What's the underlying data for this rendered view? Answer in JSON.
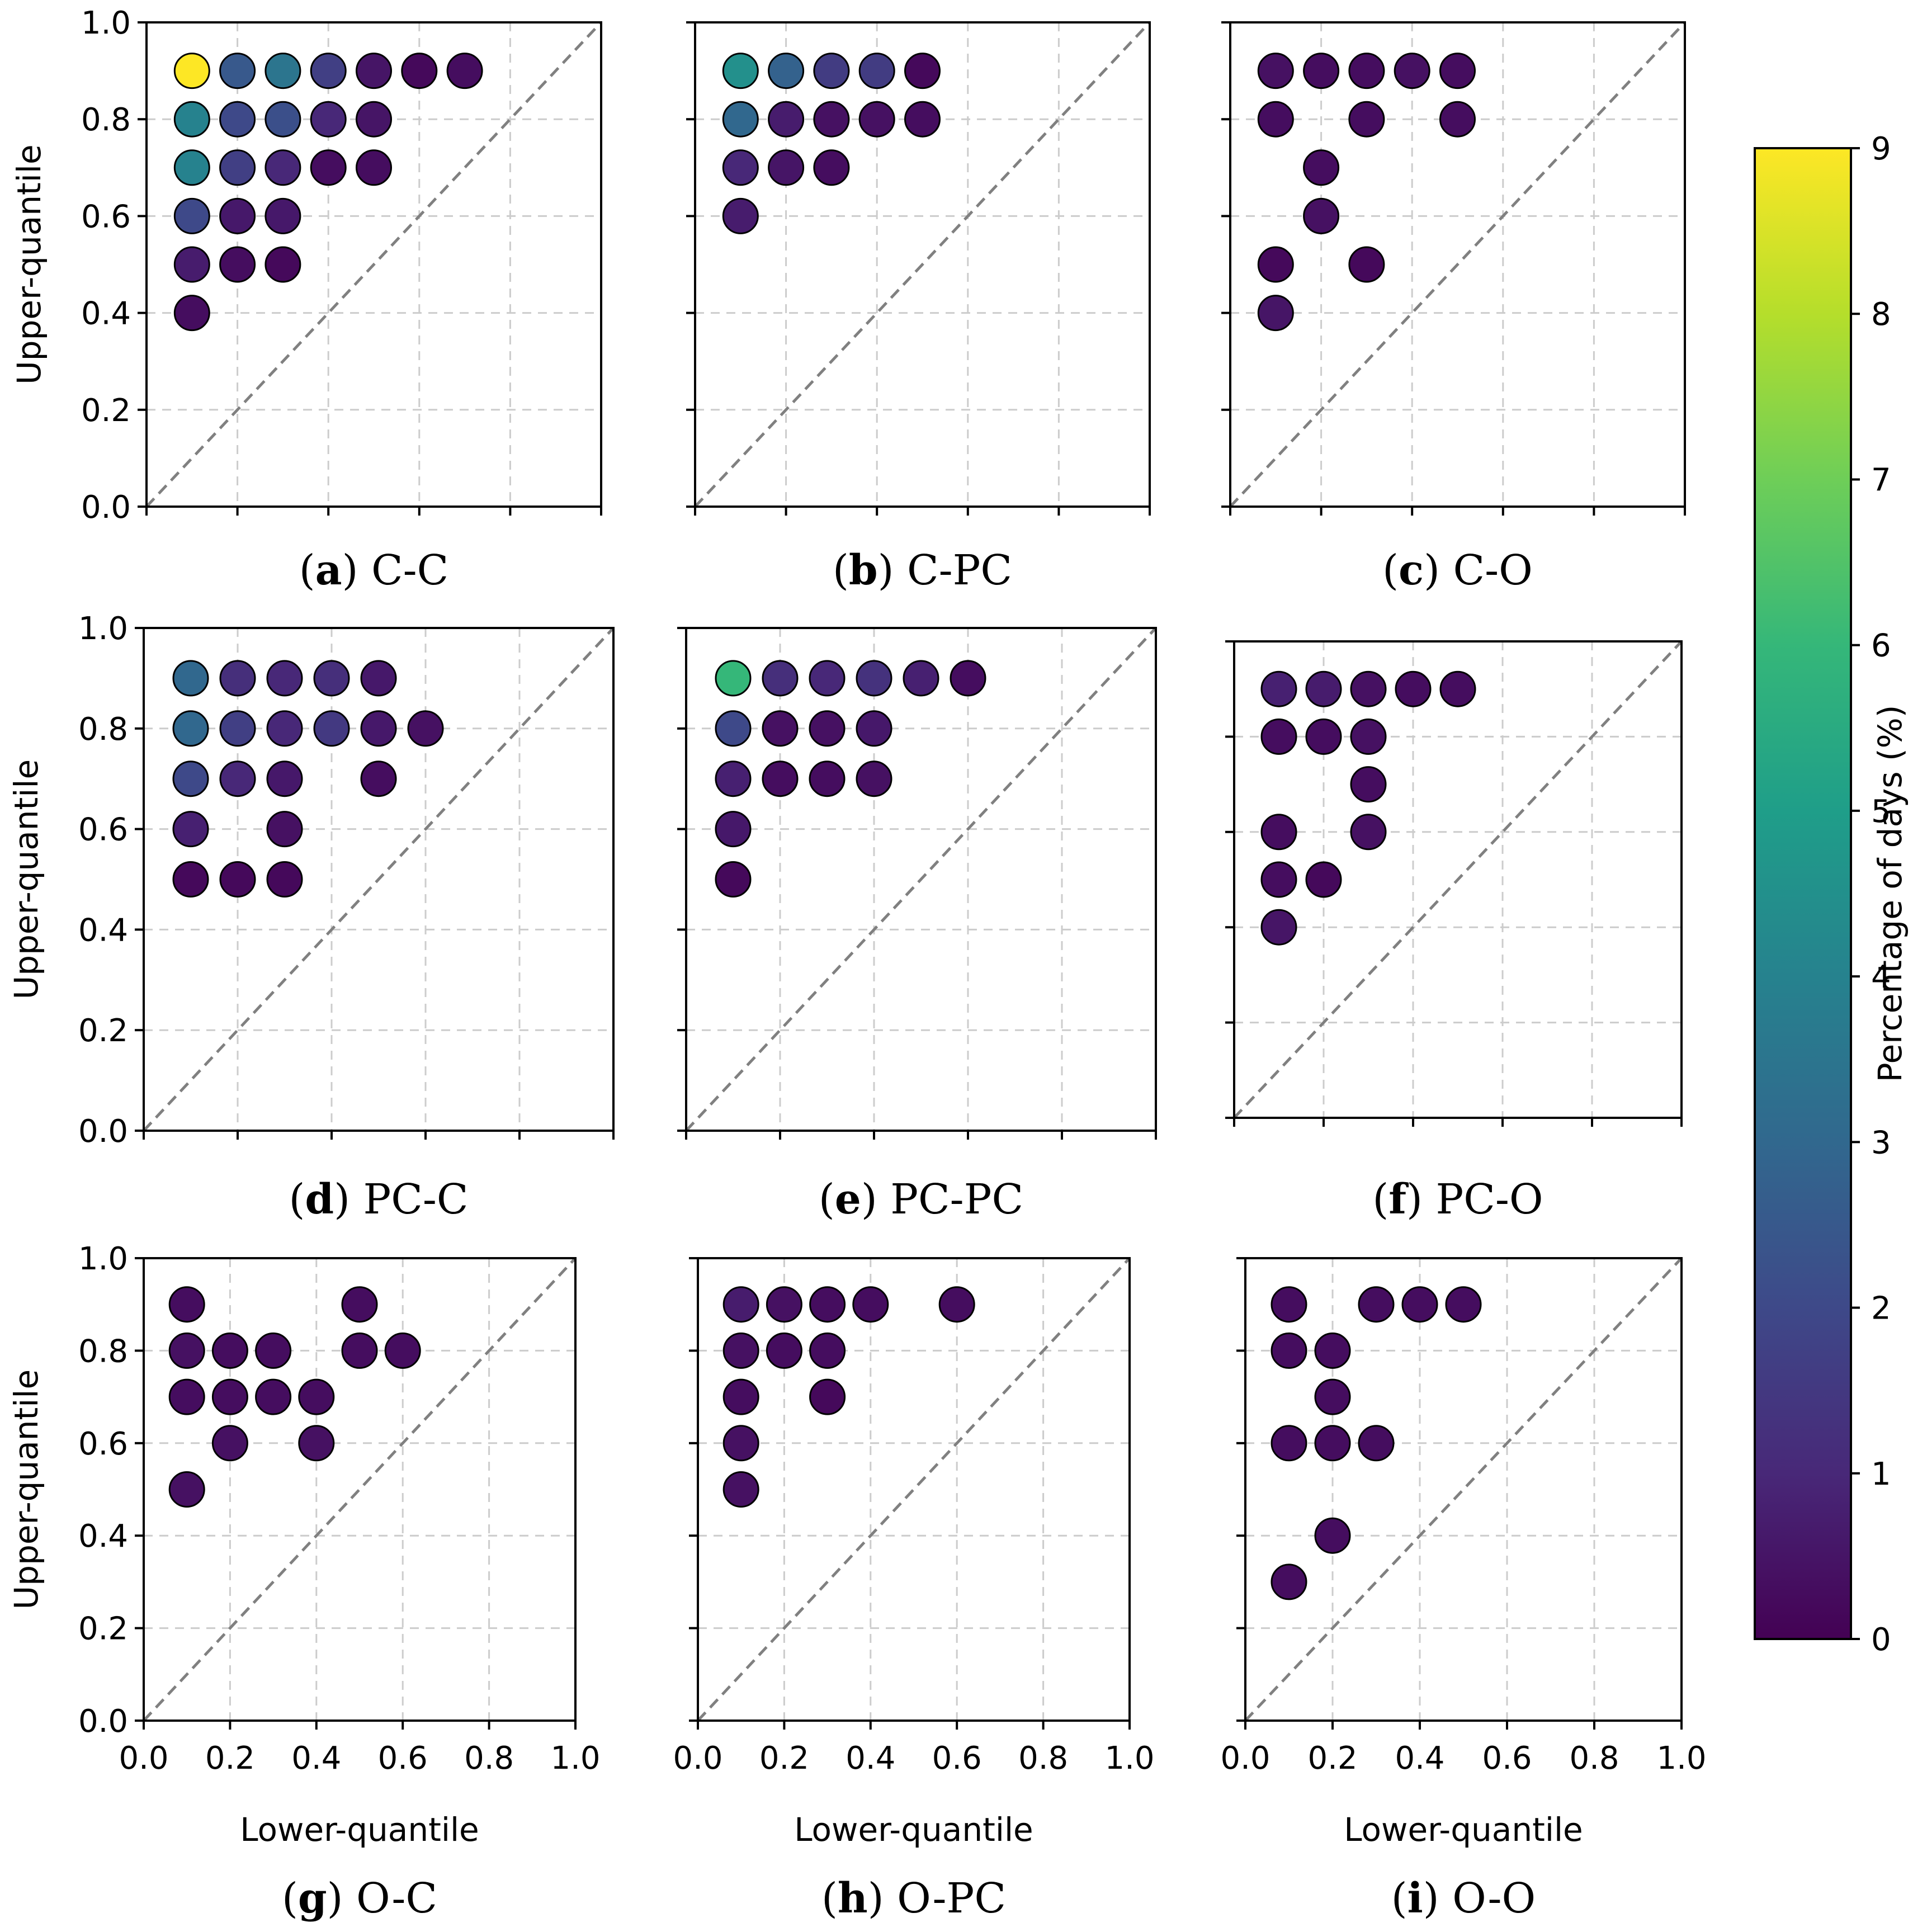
{
  "chart_data": [
    {
      "type": "scatter",
      "panel": "a",
      "title": "C-C",
      "xlabel": "",
      "ylabel": "Upper-quantile",
      "xlim": [
        0,
        1
      ],
      "ylim": [
        0,
        1
      ],
      "points": [
        {
          "x": 0.1,
          "y": 0.9,
          "v": 9.0
        },
        {
          "x": 0.2,
          "y": 0.9,
          "v": 2.5
        },
        {
          "x": 0.3,
          "y": 0.9,
          "v": 3.5
        },
        {
          "x": 0.4,
          "y": 0.9,
          "v": 1.7
        },
        {
          "x": 0.5,
          "y": 0.9,
          "v": 0.5
        },
        {
          "x": 0.6,
          "y": 0.9,
          "v": 0.2
        },
        {
          "x": 0.7,
          "y": 0.9,
          "v": 0.3
        },
        {
          "x": 0.1,
          "y": 0.8,
          "v": 4.0
        },
        {
          "x": 0.2,
          "y": 0.8,
          "v": 2.0
        },
        {
          "x": 0.3,
          "y": 0.8,
          "v": 2.2
        },
        {
          "x": 0.4,
          "y": 0.8,
          "v": 1.0
        },
        {
          "x": 0.5,
          "y": 0.8,
          "v": 0.5
        },
        {
          "x": 0.1,
          "y": 0.7,
          "v": 4.0
        },
        {
          "x": 0.2,
          "y": 0.7,
          "v": 1.7
        },
        {
          "x": 0.3,
          "y": 0.7,
          "v": 1.0
        },
        {
          "x": 0.4,
          "y": 0.7,
          "v": 0.3
        },
        {
          "x": 0.5,
          "y": 0.7,
          "v": 0.3
        },
        {
          "x": 0.1,
          "y": 0.6,
          "v": 2.0
        },
        {
          "x": 0.2,
          "y": 0.6,
          "v": 0.6
        },
        {
          "x": 0.3,
          "y": 0.6,
          "v": 0.6
        },
        {
          "x": 0.1,
          "y": 0.5,
          "v": 0.7
        },
        {
          "x": 0.2,
          "y": 0.5,
          "v": 0.3
        },
        {
          "x": 0.3,
          "y": 0.5,
          "v": 0.2
        },
        {
          "x": 0.1,
          "y": 0.4,
          "v": 0.3
        }
      ]
    },
    {
      "type": "scatter",
      "panel": "b",
      "title": "C-PC",
      "xlabel": "",
      "ylabel": "",
      "xlim": [
        0,
        1
      ],
      "ylim": [
        0,
        1
      ],
      "points": [
        {
          "x": 0.1,
          "y": 0.9,
          "v": 4.5
        },
        {
          "x": 0.2,
          "y": 0.9,
          "v": 2.8
        },
        {
          "x": 0.3,
          "y": 0.9,
          "v": 1.6
        },
        {
          "x": 0.4,
          "y": 0.9,
          "v": 1.6
        },
        {
          "x": 0.5,
          "y": 0.9,
          "v": 0.2
        },
        {
          "x": 0.1,
          "y": 0.8,
          "v": 3.0
        },
        {
          "x": 0.2,
          "y": 0.8,
          "v": 0.7
        },
        {
          "x": 0.3,
          "y": 0.8,
          "v": 0.4
        },
        {
          "x": 0.4,
          "y": 0.8,
          "v": 0.4
        },
        {
          "x": 0.5,
          "y": 0.8,
          "v": 0.3
        },
        {
          "x": 0.1,
          "y": 0.7,
          "v": 1.0
        },
        {
          "x": 0.2,
          "y": 0.7,
          "v": 0.5
        },
        {
          "x": 0.3,
          "y": 0.7,
          "v": 0.3
        },
        {
          "x": 0.1,
          "y": 0.6,
          "v": 0.7
        }
      ]
    },
    {
      "type": "scatter",
      "panel": "c",
      "title": "C-O",
      "xlabel": "",
      "ylabel": "",
      "xlim": [
        0,
        1
      ],
      "ylim": [
        0,
        1
      ],
      "points": [
        {
          "x": 0.1,
          "y": 0.9,
          "v": 0.4
        },
        {
          "x": 0.2,
          "y": 0.9,
          "v": 0.3
        },
        {
          "x": 0.3,
          "y": 0.9,
          "v": 0.3
        },
        {
          "x": 0.4,
          "y": 0.9,
          "v": 0.4
        },
        {
          "x": 0.5,
          "y": 0.9,
          "v": 0.3
        },
        {
          "x": 0.1,
          "y": 0.8,
          "v": 0.3
        },
        {
          "x": 0.3,
          "y": 0.8,
          "v": 0.3
        },
        {
          "x": 0.5,
          "y": 0.8,
          "v": 0.3
        },
        {
          "x": 0.2,
          "y": 0.7,
          "v": 0.3
        },
        {
          "x": 0.2,
          "y": 0.6,
          "v": 0.4
        },
        {
          "x": 0.1,
          "y": 0.5,
          "v": 0.2
        },
        {
          "x": 0.3,
          "y": 0.5,
          "v": 0.2
        },
        {
          "x": 0.1,
          "y": 0.4,
          "v": 0.5
        }
      ]
    },
    {
      "type": "scatter",
      "panel": "d",
      "title": "PC-C",
      "xlabel": "",
      "ylabel": "Upper-quantile",
      "xlim": [
        0,
        1
      ],
      "ylim": [
        0,
        1
      ],
      "points": [
        {
          "x": 0.1,
          "y": 0.9,
          "v": 3.0
        },
        {
          "x": 0.2,
          "y": 0.9,
          "v": 1.2
        },
        {
          "x": 0.3,
          "y": 0.9,
          "v": 1.0
        },
        {
          "x": 0.4,
          "y": 0.9,
          "v": 1.2
        },
        {
          "x": 0.5,
          "y": 0.9,
          "v": 0.6
        },
        {
          "x": 0.1,
          "y": 0.8,
          "v": 3.0
        },
        {
          "x": 0.2,
          "y": 0.8,
          "v": 1.7
        },
        {
          "x": 0.3,
          "y": 0.8,
          "v": 1.0
        },
        {
          "x": 0.4,
          "y": 0.8,
          "v": 1.5
        },
        {
          "x": 0.5,
          "y": 0.8,
          "v": 0.6
        },
        {
          "x": 0.6,
          "y": 0.8,
          "v": 0.4
        },
        {
          "x": 0.1,
          "y": 0.7,
          "v": 2.0
        },
        {
          "x": 0.2,
          "y": 0.7,
          "v": 1.0
        },
        {
          "x": 0.3,
          "y": 0.7,
          "v": 0.6
        },
        {
          "x": 0.5,
          "y": 0.7,
          "v": 0.3
        },
        {
          "x": 0.1,
          "y": 0.6,
          "v": 0.8
        },
        {
          "x": 0.3,
          "y": 0.6,
          "v": 0.4
        },
        {
          "x": 0.1,
          "y": 0.5,
          "v": 0.2
        },
        {
          "x": 0.2,
          "y": 0.5,
          "v": 0.2
        },
        {
          "x": 0.3,
          "y": 0.5,
          "v": 0.2
        }
      ]
    },
    {
      "type": "scatter",
      "panel": "e",
      "title": "PC-PC",
      "xlabel": "",
      "ylabel": "",
      "xlim": [
        0,
        1
      ],
      "ylim": [
        0,
        1
      ],
      "points": [
        {
          "x": 0.1,
          "y": 0.9,
          "v": 6.0
        },
        {
          "x": 0.2,
          "y": 0.9,
          "v": 1.2
        },
        {
          "x": 0.3,
          "y": 0.9,
          "v": 1.0
        },
        {
          "x": 0.4,
          "y": 0.9,
          "v": 1.3
        },
        {
          "x": 0.5,
          "y": 0.9,
          "v": 0.8
        },
        {
          "x": 0.6,
          "y": 0.9,
          "v": 0.3
        },
        {
          "x": 0.1,
          "y": 0.8,
          "v": 2.0
        },
        {
          "x": 0.2,
          "y": 0.8,
          "v": 0.4
        },
        {
          "x": 0.3,
          "y": 0.8,
          "v": 0.4
        },
        {
          "x": 0.4,
          "y": 0.8,
          "v": 0.6
        },
        {
          "x": 0.1,
          "y": 0.7,
          "v": 0.8
        },
        {
          "x": 0.2,
          "y": 0.7,
          "v": 0.3
        },
        {
          "x": 0.3,
          "y": 0.7,
          "v": 0.3
        },
        {
          "x": 0.4,
          "y": 0.7,
          "v": 0.4
        },
        {
          "x": 0.1,
          "y": 0.6,
          "v": 0.6
        },
        {
          "x": 0.1,
          "y": 0.5,
          "v": 0.2
        }
      ]
    },
    {
      "type": "scatter",
      "panel": "f",
      "title": "PC-O",
      "xlabel": "",
      "ylabel": "",
      "xlim": [
        0,
        1
      ],
      "ylim": [
        0,
        1
      ],
      "points": [
        {
          "x": 0.1,
          "y": 0.9,
          "v": 0.8
        },
        {
          "x": 0.2,
          "y": 0.9,
          "v": 0.7
        },
        {
          "x": 0.3,
          "y": 0.9,
          "v": 0.4
        },
        {
          "x": 0.4,
          "y": 0.9,
          "v": 0.3
        },
        {
          "x": 0.5,
          "y": 0.9,
          "v": 0.3
        },
        {
          "x": 0.1,
          "y": 0.8,
          "v": 0.3
        },
        {
          "x": 0.2,
          "y": 0.8,
          "v": 0.3
        },
        {
          "x": 0.3,
          "y": 0.8,
          "v": 0.4
        },
        {
          "x": 0.3,
          "y": 0.7,
          "v": 0.3
        },
        {
          "x": 0.1,
          "y": 0.6,
          "v": 0.3
        },
        {
          "x": 0.3,
          "y": 0.6,
          "v": 0.4
        },
        {
          "x": 0.1,
          "y": 0.5,
          "v": 0.3
        },
        {
          "x": 0.2,
          "y": 0.5,
          "v": 0.2
        },
        {
          "x": 0.1,
          "y": 0.4,
          "v": 0.5
        }
      ]
    },
    {
      "type": "scatter",
      "panel": "g",
      "title": "O-C",
      "xlabel": "Lower-quantile",
      "ylabel": "Upper-quantile",
      "xlim": [
        0,
        1
      ],
      "ylim": [
        0,
        1
      ],
      "points": [
        {
          "x": 0.1,
          "y": 0.9,
          "v": 0.3
        },
        {
          "x": 0.5,
          "y": 0.9,
          "v": 0.3
        },
        {
          "x": 0.1,
          "y": 0.8,
          "v": 0.4
        },
        {
          "x": 0.2,
          "y": 0.8,
          "v": 0.3
        },
        {
          "x": 0.3,
          "y": 0.8,
          "v": 0.3
        },
        {
          "x": 0.5,
          "y": 0.8,
          "v": 0.3
        },
        {
          "x": 0.6,
          "y": 0.8,
          "v": 0.3
        },
        {
          "x": 0.1,
          "y": 0.7,
          "v": 0.3
        },
        {
          "x": 0.2,
          "y": 0.7,
          "v": 0.3
        },
        {
          "x": 0.3,
          "y": 0.7,
          "v": 0.3
        },
        {
          "x": 0.4,
          "y": 0.7,
          "v": 0.3
        },
        {
          "x": 0.2,
          "y": 0.6,
          "v": 0.4
        },
        {
          "x": 0.4,
          "y": 0.6,
          "v": 0.4
        },
        {
          "x": 0.1,
          "y": 0.5,
          "v": 0.4
        }
      ]
    },
    {
      "type": "scatter",
      "panel": "h",
      "title": "O-PC",
      "xlabel": "Lower-quantile",
      "ylabel": "",
      "xlim": [
        0,
        1
      ],
      "ylim": [
        0,
        1
      ],
      "points": [
        {
          "x": 0.1,
          "y": 0.9,
          "v": 0.7
        },
        {
          "x": 0.2,
          "y": 0.9,
          "v": 0.4
        },
        {
          "x": 0.3,
          "y": 0.9,
          "v": 0.3
        },
        {
          "x": 0.4,
          "y": 0.9,
          "v": 0.3
        },
        {
          "x": 0.6,
          "y": 0.9,
          "v": 0.3
        },
        {
          "x": 0.1,
          "y": 0.8,
          "v": 0.4
        },
        {
          "x": 0.2,
          "y": 0.8,
          "v": 0.3
        },
        {
          "x": 0.3,
          "y": 0.8,
          "v": 0.3
        },
        {
          "x": 0.1,
          "y": 0.7,
          "v": 0.3
        },
        {
          "x": 0.3,
          "y": 0.7,
          "v": 0.2
        },
        {
          "x": 0.1,
          "y": 0.6,
          "v": 0.4
        },
        {
          "x": 0.1,
          "y": 0.5,
          "v": 0.4
        }
      ]
    },
    {
      "type": "scatter",
      "panel": "i",
      "title": "O-O",
      "xlabel": "Lower-quantile",
      "ylabel": "",
      "xlim": [
        0,
        1
      ],
      "ylim": [
        0,
        1
      ],
      "points": [
        {
          "x": 0.1,
          "y": 0.9,
          "v": 0.3
        },
        {
          "x": 0.3,
          "y": 0.9,
          "v": 0.3
        },
        {
          "x": 0.4,
          "y": 0.9,
          "v": 0.3
        },
        {
          "x": 0.5,
          "y": 0.9,
          "v": 0.3
        },
        {
          "x": 0.1,
          "y": 0.8,
          "v": 0.3
        },
        {
          "x": 0.2,
          "y": 0.8,
          "v": 0.3
        },
        {
          "x": 0.2,
          "y": 0.7,
          "v": 0.3
        },
        {
          "x": 0.1,
          "y": 0.6,
          "v": 0.3
        },
        {
          "x": 0.2,
          "y": 0.6,
          "v": 0.3
        },
        {
          "x": 0.3,
          "y": 0.6,
          "v": 0.3
        },
        {
          "x": 0.2,
          "y": 0.4,
          "v": 0.3
        },
        {
          "x": 0.1,
          "y": 0.3,
          "v": 0.3
        }
      ]
    }
  ],
  "tick_labels": [
    "0.0",
    "0.2",
    "0.4",
    "0.6",
    "0.8",
    "1.0"
  ],
  "colorbar": {
    "label": "Percentage of days (%)",
    "range": [
      0,
      9
    ],
    "tick_labels": [
      "0",
      "1",
      "2",
      "3",
      "4",
      "5",
      "6",
      "7",
      "8",
      "9"
    ],
    "colormap": "viridis",
    "colors": [
      "#440154",
      "#482878",
      "#3e4989",
      "#31688e",
      "#26828e",
      "#1f9e89",
      "#35b779",
      "#6ece58",
      "#b5de2b",
      "#fde725"
    ]
  },
  "styles": {
    "grid_color": "#cccccc",
    "diagonal_color": "#808080",
    "axes_color": "#000000",
    "marker_edge_color": "#000000"
  }
}
